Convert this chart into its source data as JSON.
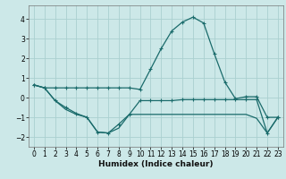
{
  "xlabel": "Humidex (Indice chaleur)",
  "bg_color": "#cce8e8",
  "grid_color": "#aad0d0",
  "line_color": "#1a6b6b",
  "line1_x": [
    0,
    1,
    2,
    3,
    4,
    5,
    6,
    7,
    8,
    9,
    10,
    11,
    12,
    13,
    14,
    15,
    16,
    17,
    18,
    19,
    20,
    21,
    22,
    23
  ],
  "line1_y": [
    0.65,
    0.5,
    0.5,
    0.5,
    0.5,
    0.5,
    0.5,
    0.5,
    0.5,
    0.5,
    0.42,
    1.45,
    2.5,
    3.4,
    3.85,
    4.1,
    3.8,
    2.25,
    0.8,
    -0.05,
    0.05,
    0.05,
    -1.0,
    -1.0
  ],
  "line2_x": [
    0,
    1,
    2,
    3,
    4,
    5,
    6,
    7,
    8,
    9,
    10,
    11,
    12,
    13,
    14,
    15,
    16,
    17,
    18,
    19,
    20,
    21,
    22,
    23
  ],
  "line2_y": [
    0.65,
    0.5,
    -0.15,
    -0.5,
    -0.8,
    -1.0,
    -1.75,
    -1.8,
    -1.35,
    -0.85,
    -0.15,
    -0.15,
    -0.15,
    -0.15,
    -0.1,
    -0.1,
    -0.1,
    -0.1,
    -0.1,
    -0.1,
    -0.1,
    -0.1,
    -1.8,
    -1.0
  ],
  "line3_x": [
    0,
    1,
    2,
    3,
    4,
    5,
    6,
    7,
    8,
    9,
    10,
    11,
    12,
    13,
    14,
    15,
    16,
    17,
    18,
    19,
    20,
    21,
    22,
    23
  ],
  "line3_y": [
    0.65,
    0.5,
    -0.15,
    -0.6,
    -0.85,
    -1.0,
    -1.75,
    -1.8,
    -1.55,
    -0.85,
    -0.85,
    -0.85,
    -0.85,
    -0.85,
    -0.85,
    -0.85,
    -0.85,
    -0.85,
    -0.85,
    -0.85,
    -0.85,
    -1.05,
    -1.8,
    -1.0
  ],
  "ylim": [
    -2.5,
    4.7
  ],
  "xlim": [
    -0.5,
    23.5
  ],
  "yticks": [
    -2,
    -1,
    0,
    1,
    2,
    3,
    4
  ],
  "xticks": [
    0,
    1,
    2,
    3,
    4,
    5,
    6,
    7,
    8,
    9,
    10,
    11,
    12,
    13,
    14,
    15,
    16,
    17,
    18,
    19,
    20,
    21,
    22,
    23
  ],
  "tick_fontsize": 5.5,
  "xlabel_fontsize": 6.5
}
